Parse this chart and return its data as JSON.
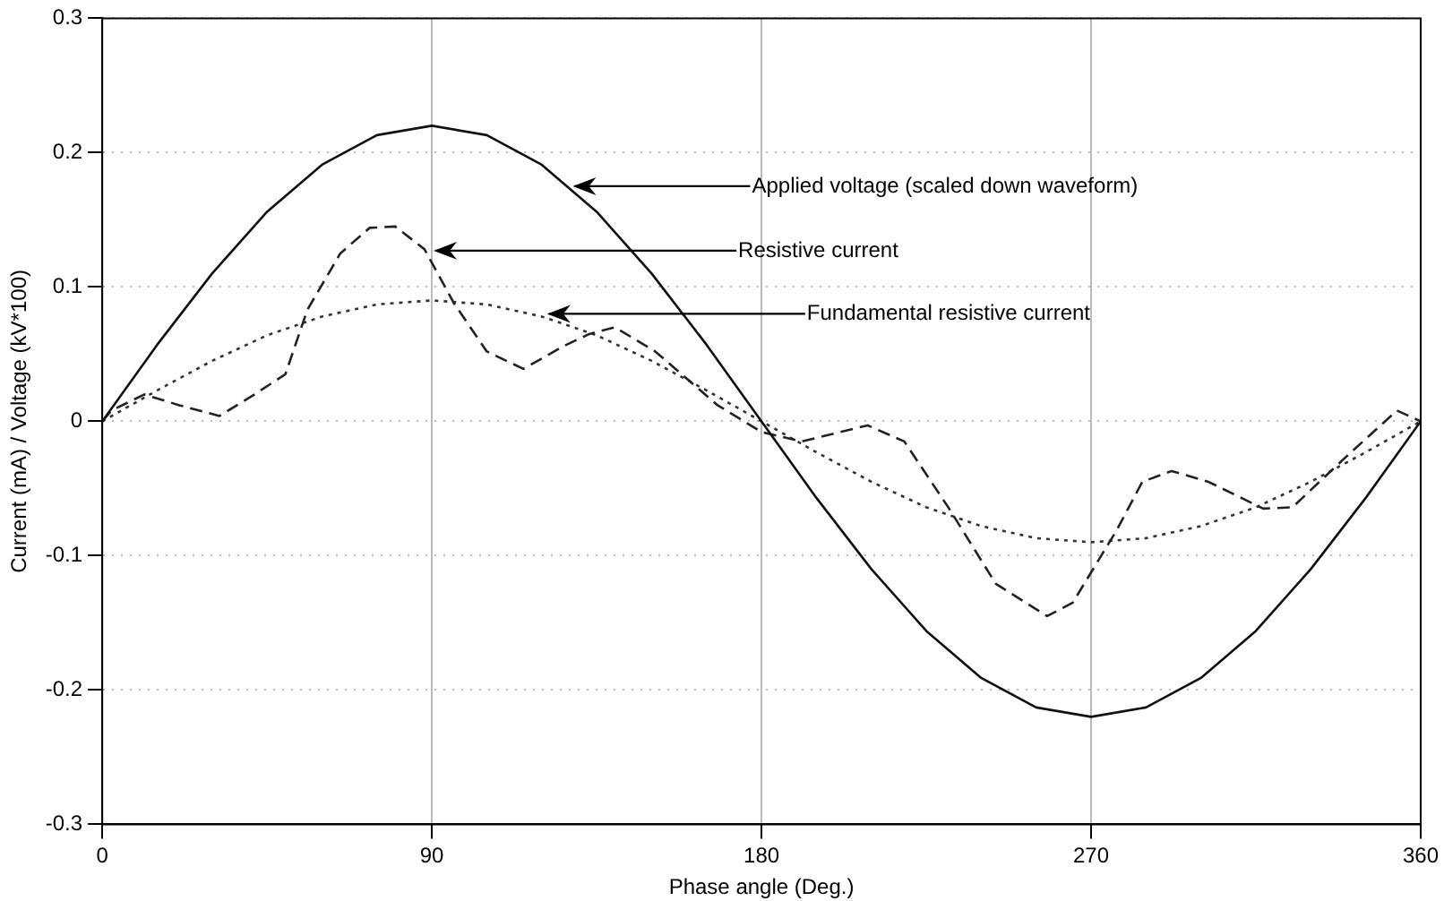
{
  "chart_data": {
    "type": "line",
    "xlabel": "Phase angle (Deg.)",
    "ylabel": "Current (mA) / Voltage (kV*100)",
    "xlim": [
      0,
      360
    ],
    "xticks": [
      0,
      90,
      180,
      270,
      360
    ],
    "ylim": [
      -0.3,
      0.3
    ],
    "yticks": [
      -0.3,
      -0.2,
      -0.1,
      0,
      0.1,
      0.2,
      0.3
    ],
    "grid": true,
    "legend": false,
    "marker": "none",
    "series": [
      {
        "color": "#111111",
        "line_style": "solid",
        "x": [
          0,
          15,
          30,
          45,
          60,
          75,
          90,
          105,
          120,
          135,
          150,
          165,
          180,
          195,
          210,
          225,
          240,
          255,
          270,
          285,
          300,
          315,
          330,
          345,
          360
        ],
        "values": [
          0,
          0.057,
          0.11,
          0.156,
          0.191,
          0.213,
          0.22,
          0.213,
          0.191,
          0.156,
          0.11,
          0.057,
          0,
          -0.057,
          -0.11,
          -0.156,
          -0.191,
          -0.213,
          -0.22,
          -0.213,
          -0.191,
          -0.156,
          -0.11,
          -0.057,
          0
        ]
      },
      {
        "color": "#222222",
        "line_style": "dashed",
        "x": [
          0,
          2.5,
          11.5,
          21,
          32,
          41,
          50,
          56,
          65,
          73,
          80,
          88,
          96,
          105,
          115,
          126,
          133,
          140,
          151,
          168,
          180,
          191,
          209,
          219,
          231,
          244,
          258,
          265,
          277,
          284,
          292,
          302,
          317,
          325,
          339,
          353.5,
          360
        ],
        "values": [
          0,
          0.008,
          0.02,
          0.012,
          0.004,
          0.019,
          0.035,
          0.083,
          0.125,
          0.144,
          0.145,
          0.128,
          0.088,
          0.052,
          0.039,
          0.056,
          0.065,
          0.07,
          0.052,
          0.012,
          -0.008,
          -0.015,
          -0.003,
          -0.015,
          -0.064,
          -0.121,
          -0.145,
          -0.135,
          -0.081,
          -0.045,
          -0.037,
          -0.045,
          -0.065,
          -0.064,
          -0.028,
          0.008,
          0
        ]
      },
      {
        "color": "#333333",
        "line_style": "dotted",
        "x": [
          0,
          15,
          30,
          45,
          60,
          75,
          90,
          105,
          120,
          135,
          150,
          165,
          180,
          195,
          210,
          225,
          240,
          255,
          270,
          285,
          300,
          315,
          330,
          345,
          360
        ],
        "values": [
          0,
          0.023,
          0.045,
          0.064,
          0.078,
          0.087,
          0.09,
          0.087,
          0.078,
          0.064,
          0.045,
          0.023,
          0,
          -0.023,
          -0.045,
          -0.064,
          -0.078,
          -0.087,
          -0.09,
          -0.087,
          -0.078,
          -0.064,
          -0.045,
          -0.023,
          0
        ]
      }
    ],
    "annotations": [
      {
        "text": "Applied voltage (scaled down waveform)",
        "x": 128,
        "y": 0.175
      },
      {
        "text": "Resistive current",
        "x": 90,
        "y": 0.127
      },
      {
        "text": "Fundamental resistive current",
        "x": 121,
        "y": 0.08
      }
    ]
  }
}
